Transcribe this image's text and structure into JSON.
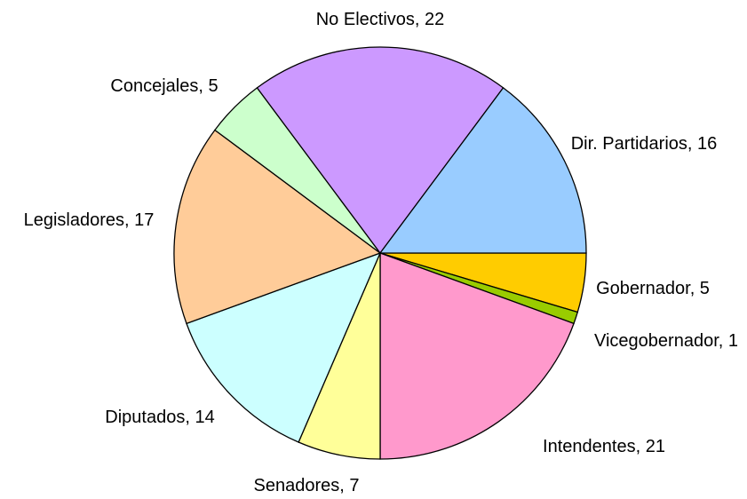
{
  "chart_data": {
    "type": "pie",
    "values": [
      5,
      1,
      21,
      7,
      14,
      17,
      5,
      22,
      16
    ],
    "value_labels": [
      "Gobernador, 5",
      "Vicegobernador, 1",
      "Intendentes, 21",
      "Senadores, 7",
      "Diputados, 14",
      "Legisladores, 17",
      "Concejales, 5",
      "No Electivos, 22",
      "Dir. Partidarios, 16"
    ],
    "colors": [
      "#FFCC00",
      "#99CC00",
      "#FF99CC",
      "#FFFF99",
      "#CCFFFF",
      "#FFCC99",
      "#CCFFCC",
      "#CC99FF",
      "#99CCFF"
    ]
  }
}
